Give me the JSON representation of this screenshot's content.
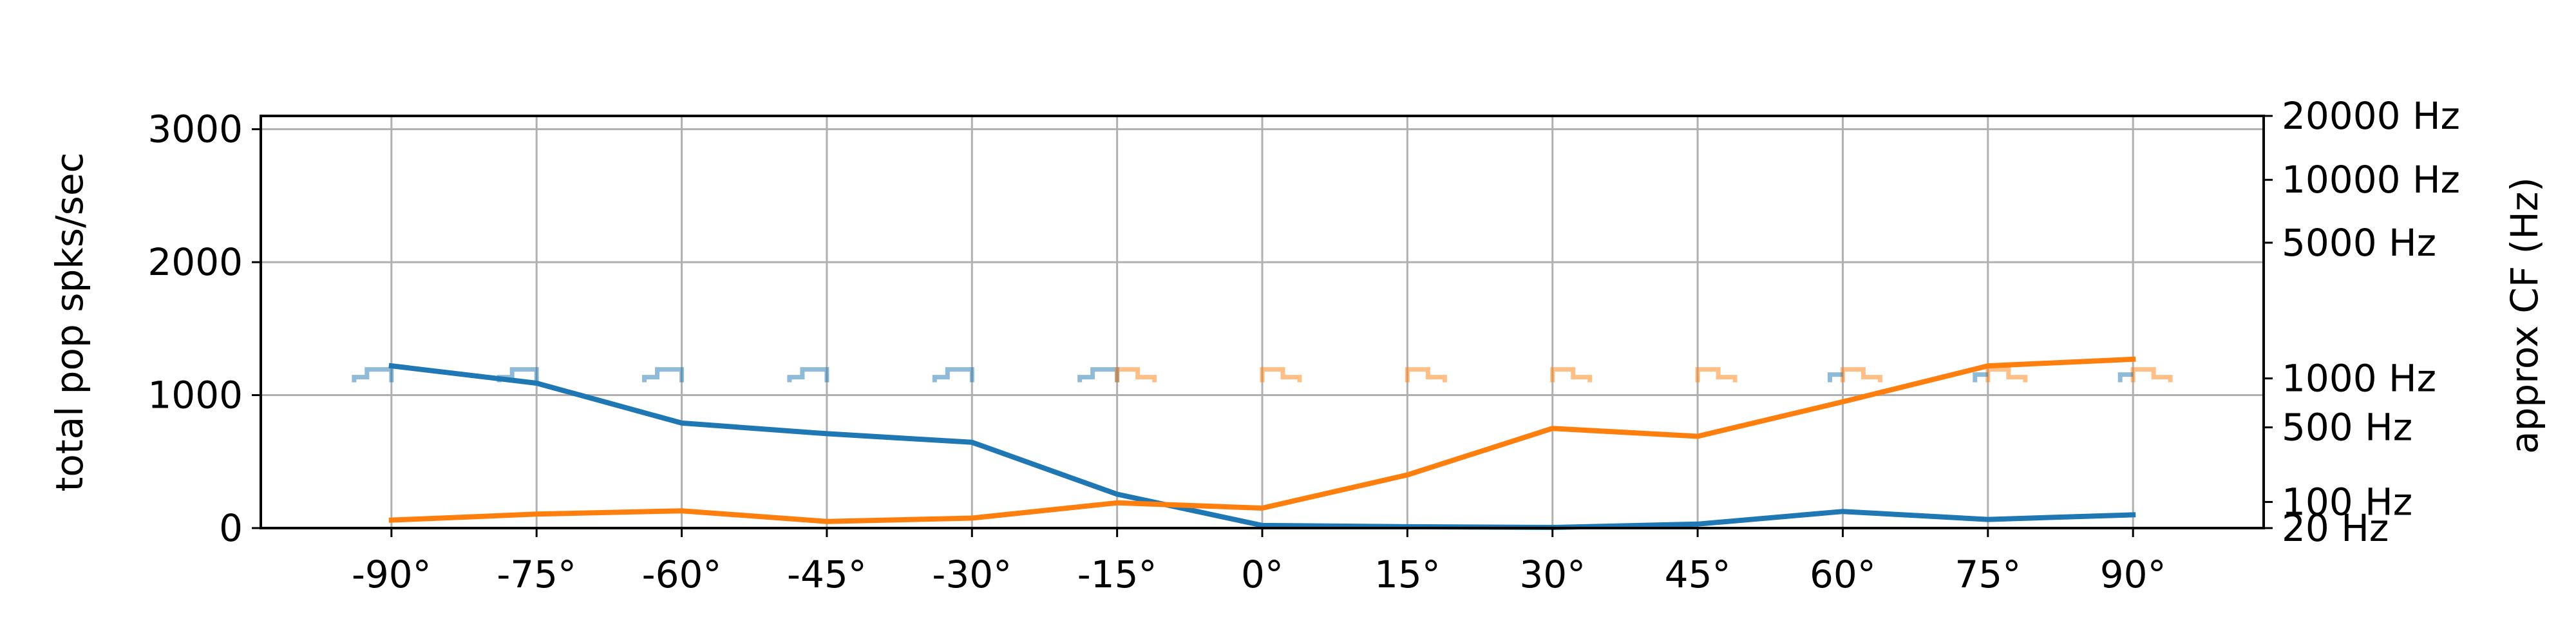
{
  "chart_data": {
    "type": "line",
    "title": "",
    "xlabel": "",
    "ylabel": "total pop spks/sec",
    "y2label": "approx CF (Hz)",
    "x": [
      -90,
      -75,
      -60,
      -45,
      -30,
      -15,
      0,
      15,
      30,
      45,
      60,
      75,
      90
    ],
    "x_tick_labels": [
      "-90°",
      "-75°",
      "-60°",
      "-45°",
      "-30°",
      "-15°",
      "0°",
      "15°",
      "30°",
      "45°",
      "60°",
      "75°",
      "90°"
    ],
    "xlim": [
      -103.5,
      103.5
    ],
    "ylim": [
      0,
      3100
    ],
    "y_ticks": [
      0,
      1000,
      2000,
      3000
    ],
    "y_tick_labels": [
      "0",
      "1000",
      "2000",
      "3000"
    ],
    "y2_scale": "log (ERB-like)",
    "y2_ticks": [
      20,
      100,
      500,
      1000,
      5000,
      10000,
      20000
    ],
    "y2_tick_labels": [
      "20 Hz",
      "100 Hz",
      "500 Hz",
      "1000 Hz",
      "5000 Hz",
      "10000 Hz",
      "20000 Hz"
    ],
    "grid": true,
    "legend": "none",
    "series": [
      {
        "color": "#1f77b4",
        "values": [
          1220,
          1090,
          790,
          710,
          645,
          255,
          20,
          10,
          5,
          30,
          125,
          65,
          100
        ]
      },
      {
        "color": "#ff7f0e",
        "values": [
          60,
          105,
          130,
          50,
          75,
          190,
          150,
          400,
          750,
          690,
          950,
          1220,
          1270
        ]
      }
    ],
    "cf_histograms_hz": {
      "note_color_series_1": "#1f77b4",
      "note_color_series_2": "#ff7f0e",
      "center_hz": 1000
    }
  }
}
